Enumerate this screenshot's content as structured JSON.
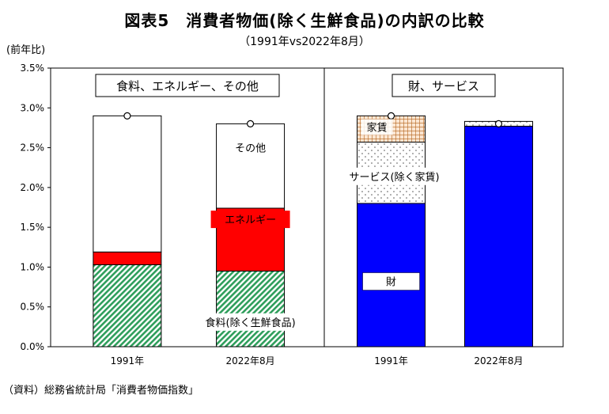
{
  "title": "図表5　消費者物価(除く生鮮食品)の内訳の比較",
  "subtitle": "（1991年vs2022年8月）",
  "unit_label": "(前年比)",
  "source": "（資料）総務省統計局「消費者物価指数」",
  "chart_data": {
    "type": "bar",
    "stacked": true,
    "ylim": [
      0,
      3.5
    ],
    "yticks": [
      "0.0%",
      "0.5%",
      "1.0%",
      "1.5%",
      "2.0%",
      "2.5%",
      "3.0%",
      "3.5%"
    ],
    "ytick_values": [
      0,
      0.5,
      1.0,
      1.5,
      2.0,
      2.5,
      3.0,
      3.5
    ],
    "panels": [
      {
        "label": "食料、エネルギー、その他",
        "categories": [
          "1991年",
          "2022年8月"
        ],
        "series": [
          {
            "name": "食料(除く生鮮食品)",
            "values": [
              1.03,
              0.95
            ],
            "color": "#2e9e5b",
            "pattern": "diag"
          },
          {
            "name": "エネルギー",
            "values": [
              0.16,
              0.79
            ],
            "color": "#ff0000",
            "pattern": "solid"
          },
          {
            "name": "その他",
            "values": [
              1.71,
              1.06
            ],
            "color": "#ffffff",
            "pattern": "solid"
          }
        ],
        "totals": [
          2.9,
          2.8
        ]
      },
      {
        "label": "財、サービス",
        "categories": [
          "1991年",
          "2022年8月"
        ],
        "series": [
          {
            "name": "財",
            "values": [
              1.8,
              2.77
            ],
            "color": "#0000ff",
            "pattern": "solid"
          },
          {
            "name": "サービス(除く家賃)",
            "values": [
              0.77,
              0.06
            ],
            "color": "#ffffff",
            "pattern": "dots"
          },
          {
            "name": "家賃",
            "values": [
              0.33,
              0
            ],
            "color": "#c8793a",
            "pattern": "grid"
          }
        ],
        "totals": [
          2.9,
          2.8
        ]
      }
    ],
    "bar_labels": [
      "その他",
      "エネルギー",
      "食料(除く生鮮食品)",
      "家賃",
      "サービス(除く家賃)",
      "財"
    ]
  }
}
